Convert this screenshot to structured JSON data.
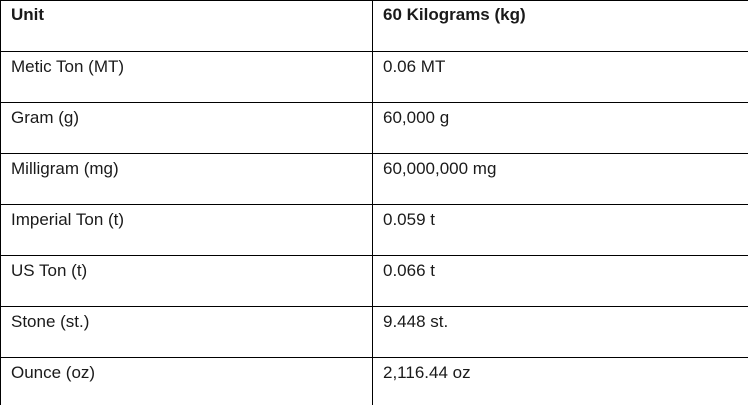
{
  "table": {
    "headers": [
      "Unit",
      "60 Kilograms (kg)"
    ],
    "rows": [
      [
        "Metic Ton (MT)",
        "0.06 MT"
      ],
      [
        "Gram (g)",
        "60,000 g"
      ],
      [
        "Milligram (mg)",
        "60,000,000 mg"
      ],
      [
        "Imperial Ton (t)",
        "0.059 t"
      ],
      [
        "US Ton (t)",
        "0.066 t"
      ],
      [
        "Stone (st.)",
        "9.448 st."
      ],
      [
        "Ounce (oz)",
        "2,116.44 oz"
      ]
    ]
  }
}
